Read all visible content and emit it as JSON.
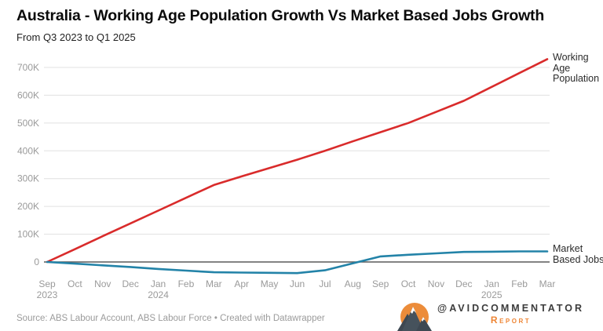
{
  "header": {
    "title": "Australia - Working Age Population Growth Vs Market Based Jobs Growth",
    "subtitle": "From Q3 2023 to Q1 2025"
  },
  "footer": {
    "source": "Source: ABS Labour Account, ABS Labour Force • Created with Datawrapper",
    "brand_handle": "@AVIDCOMMENTATOR",
    "brand_sub": "Report"
  },
  "colors": {
    "red_series": "#d92b2b",
    "blue_series": "#2383a8",
    "gridline": "#e0e0e0",
    "zero_line": "#5a5a5a",
    "axis_text": "#9a9a9a",
    "brand_orange": "#ec8c3a",
    "brand_dark": "#3e4852"
  },
  "chart_data": {
    "type": "line",
    "title": "Australia - Working Age Population Growth Vs Market Based Jobs Growth",
    "subtitle": "From Q3 2023 to Q1 2025",
    "grid": true,
    "legend_position": "right-edge-labels",
    "ylim": [
      -60000,
      745000
    ],
    "y_axis": {
      "ticks": [
        {
          "v": 0,
          "label": "0"
        },
        {
          "v": 100000,
          "label": "100K"
        },
        {
          "v": 200000,
          "label": "200K"
        },
        {
          "v": 300000,
          "label": "300K"
        },
        {
          "v": 400000,
          "label": "400K"
        },
        {
          "v": 500000,
          "label": "500K"
        },
        {
          "v": 600000,
          "label": "600K"
        },
        {
          "v": 700000,
          "label": "700K"
        }
      ]
    },
    "x_ticks": [
      {
        "label": "Sep",
        "year": "2023"
      },
      {
        "label": "Oct"
      },
      {
        "label": "Nov"
      },
      {
        "label": "Dec"
      },
      {
        "label": "Jan",
        "year": "2024"
      },
      {
        "label": "Feb"
      },
      {
        "label": "Mar"
      },
      {
        "label": "Apr"
      },
      {
        "label": "May"
      },
      {
        "label": "Jun"
      },
      {
        "label": "Jul"
      },
      {
        "label": "Aug"
      },
      {
        "label": "Sep"
      },
      {
        "label": "Oct"
      },
      {
        "label": "Nov"
      },
      {
        "label": "Dec"
      },
      {
        "label": "Jan",
        "year": "2025"
      },
      {
        "label": "Feb"
      },
      {
        "label": "Mar"
      }
    ],
    "series": [
      {
        "name": "Working Age Population",
        "color": "#d92b2b",
        "values": [
          0,
          46000,
          93000,
          139000,
          185000,
          231000,
          277000,
          308000,
          338000,
          368000,
          400000,
          434000,
          467000,
          500000,
          540000,
          580000,
          630000,
          680000,
          730000
        ]
      },
      {
        "name": "Market Based Jobs",
        "color": "#2383a8",
        "values": [
          0,
          -6000,
          -12000,
          -18000,
          -25000,
          -31000,
          -37000,
          -38000,
          -39000,
          -40000,
          -30000,
          -5000,
          20000,
          26000,
          31000,
          36000,
          37000,
          38000,
          38000
        ]
      }
    ]
  }
}
